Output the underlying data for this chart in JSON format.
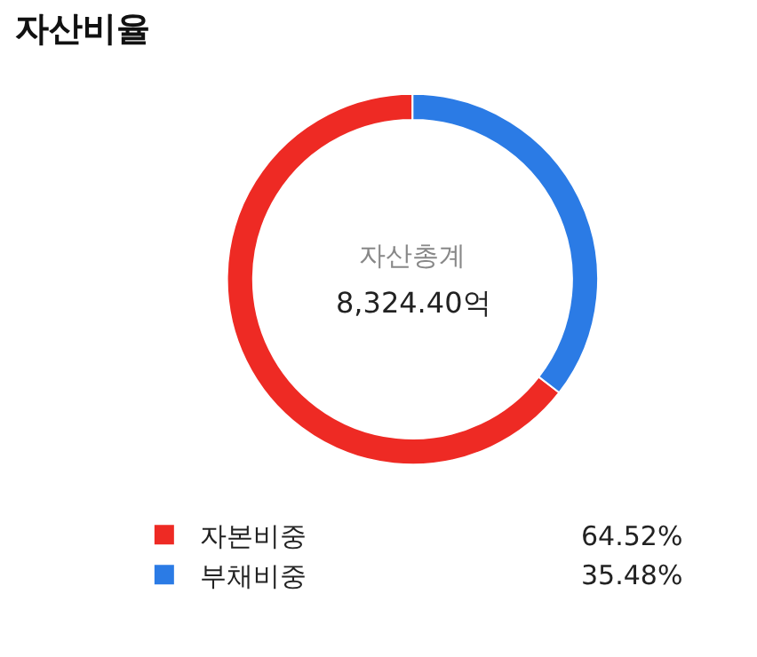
{
  "chart_data": {
    "type": "donut",
    "title": "자산비율",
    "categories": [
      "자본비중",
      "부채비중"
    ],
    "values": [
      64.52,
      35.48
    ],
    "colors": [
      "#ee2a24",
      "#2b7be5"
    ],
    "value_labels": [
      "64.52%",
      "35.48%"
    ],
    "annotations": [
      "자산총계",
      "8,324.40억"
    ],
    "legend": "bottom"
  }
}
